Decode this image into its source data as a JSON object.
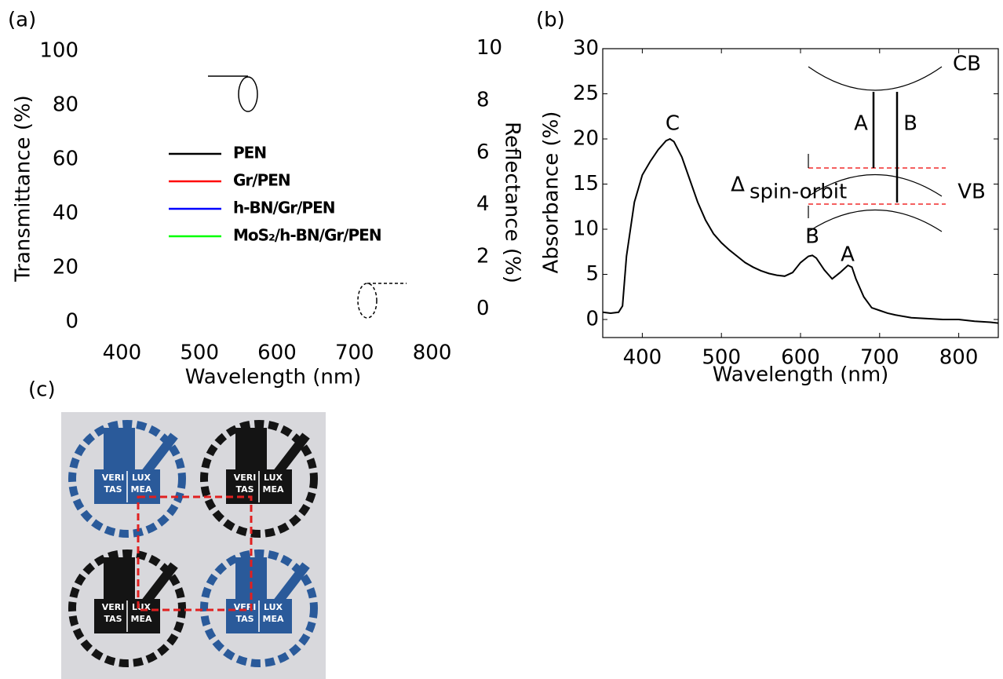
{
  "chart_data": [
    {
      "type": "line",
      "panel_label": "(a)",
      "x_label": "Wavelength (nm)",
      "y_label": "Transmittance (%)",
      "y2_label": "Reflectance (%)",
      "xlim": [
        350,
        850
      ],
      "xticks": [
        400,
        500,
        600,
        700,
        800
      ],
      "ylim": [
        0,
        100
      ],
      "yticks": [
        0,
        20,
        40,
        60,
        80,
        100
      ],
      "y2lim": [
        -0.5,
        9.9
      ],
      "y2ticks": [
        0,
        2,
        4,
        6,
        8,
        10
      ],
      "x": [],
      "series": [
        {
          "name": "PEN",
          "color": "#000000",
          "values": []
        },
        {
          "name": "Gr/PEN",
          "color": "#ff0000",
          "values": []
        },
        {
          "name": "h-BN/Gr/PEN",
          "color": "#0000ff",
          "values": []
        },
        {
          "name": "MoS₂/h-BN/Gr/PEN",
          "color": "#00ff00",
          "values": []
        }
      ]
    },
    {
      "type": "line",
      "panel_label": "(b)",
      "x_label": "Wavelength (nm)",
      "y_label": "Absorbance (%)",
      "xlim": [
        350,
        850
      ],
      "xticks": [
        400,
        500,
        600,
        700,
        800
      ],
      "ylim": [
        -2,
        30
      ],
      "yticks": [
        0,
        5,
        10,
        15,
        20,
        25,
        30
      ],
      "x": [
        350,
        360,
        370,
        375,
        380,
        390,
        400,
        410,
        420,
        430,
        435,
        440,
        450,
        460,
        470,
        480,
        490,
        500,
        510,
        520,
        530,
        540,
        550,
        560,
        570,
        580,
        590,
        600,
        610,
        615,
        620,
        630,
        640,
        650,
        660,
        665,
        670,
        680,
        690,
        700,
        710,
        720,
        740,
        760,
        780,
        800,
        820,
        840,
        850
      ],
      "series": [
        {
          "name": null,
          "color": "#000000",
          "values": [
            0.8,
            0.7,
            0.8,
            1.5,
            7,
            13,
            16,
            17.5,
            18.8,
            19.8,
            20,
            19.7,
            18,
            15.5,
            13,
            11,
            9.5,
            8.5,
            7.7,
            7,
            6.3,
            5.8,
            5.4,
            5.1,
            4.9,
            4.8,
            5.2,
            6.3,
            7,
            7.1,
            6.8,
            5.5,
            4.5,
            5.2,
            6,
            5.8,
            4.5,
            2.5,
            1.3,
            1,
            0.7,
            0.5,
            0.2,
            0.1,
            0,
            0,
            -0.2,
            -0.3,
            -0.4
          ]
        }
      ],
      "annotations": [
        "C",
        "B",
        "A",
        "CB",
        "VB",
        "A",
        "B",
        "Δ",
        "spin-orbit"
      ]
    }
  ],
  "photo": {
    "panel_label": "(c)",
    "logo_text": [
      "VERI",
      "LUX",
      "TAS",
      "MEA"
    ]
  }
}
